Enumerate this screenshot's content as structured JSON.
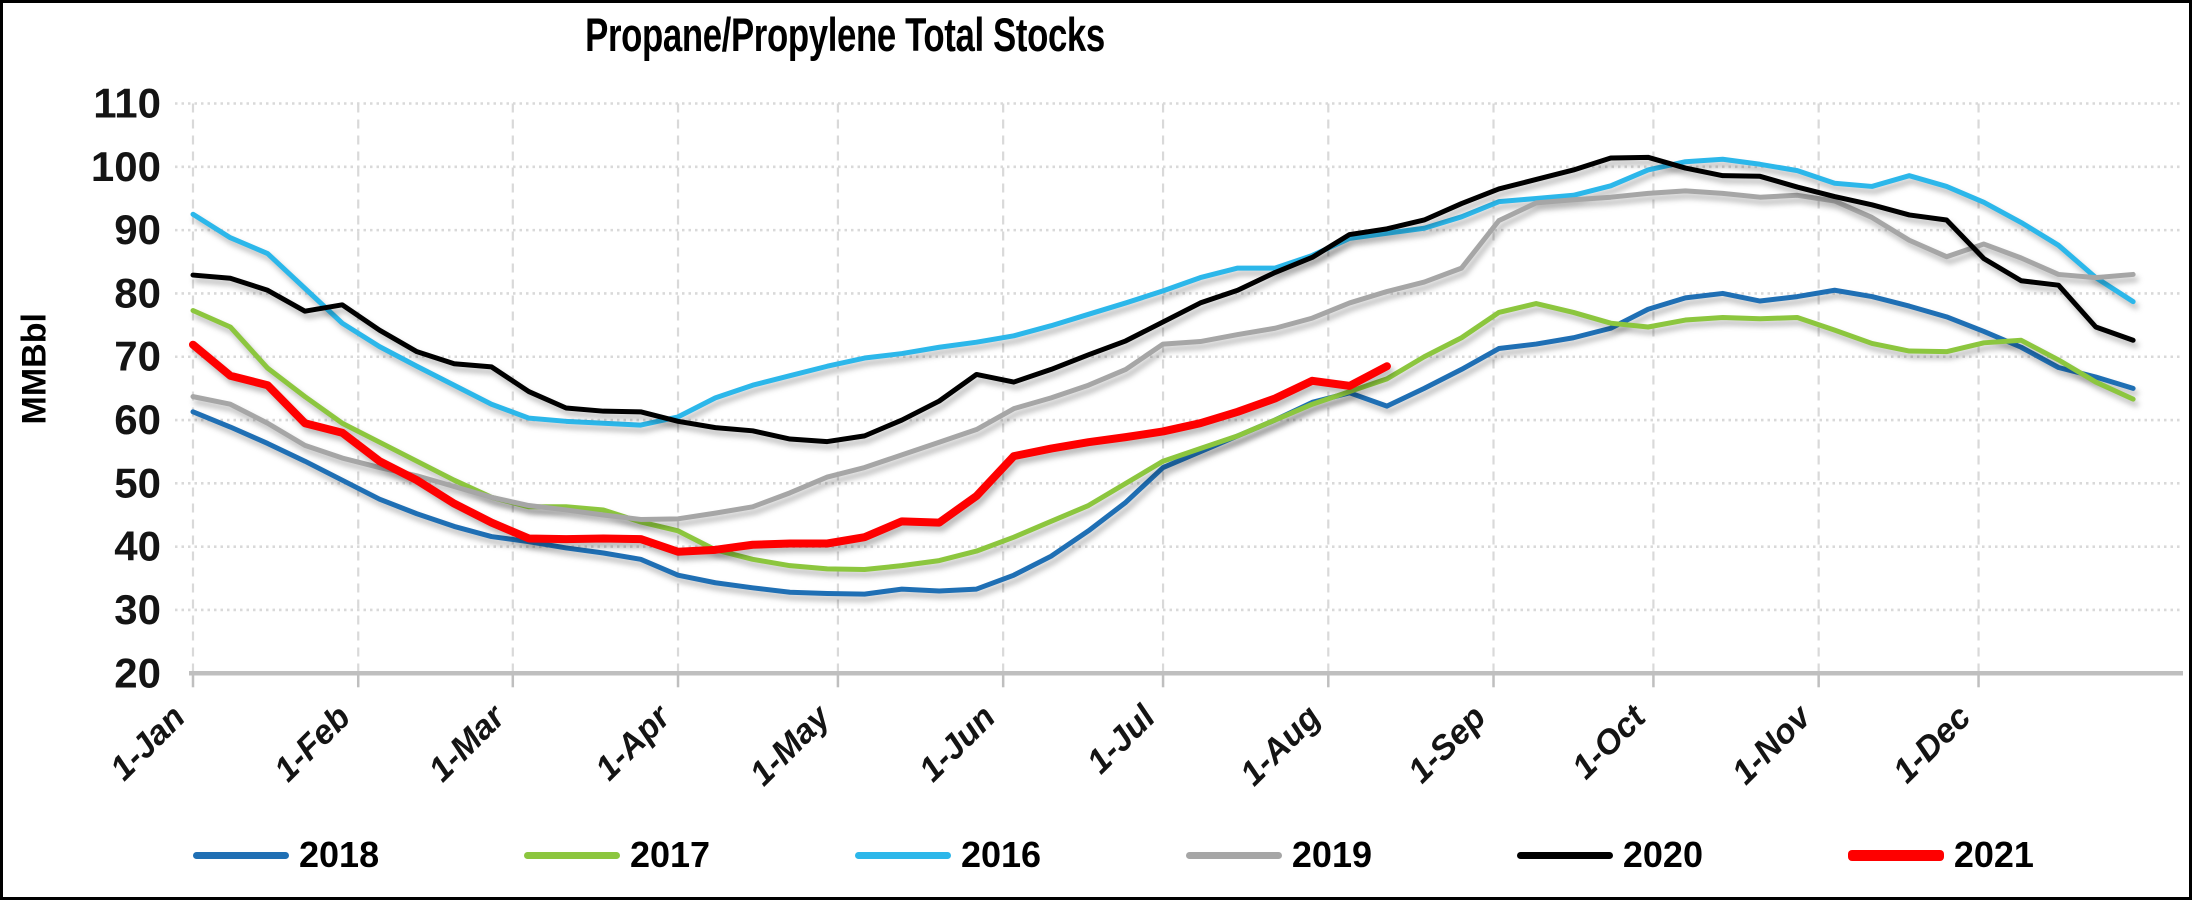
{
  "chart_data": {
    "type": "line",
    "title": "Propane/Propylene Total Stocks",
    "xlabel": "",
    "ylabel": "MMBbl",
    "ylim": [
      20,
      110
    ],
    "ytick_step": 10,
    "grid": true,
    "legend_position": "bottom",
    "x_unit": "weekly points, one per week starting 1-Jan",
    "x_tick_labels": [
      "1-Jan",
      "1-Feb",
      "1-Mar",
      "1-Apr",
      "1-May",
      "1-Jun",
      "1-Jul",
      "1-Aug",
      "1-Sep",
      "1-Oct",
      "1-Nov",
      "1-Dec"
    ],
    "series": [
      {
        "name": "2018",
        "color": "#1f6fb4",
        "width": 5,
        "values": [
          61.3,
          58.9,
          56.3,
          53.5,
          50.5,
          47.5,
          45.2,
          43.2,
          41.6,
          40.8,
          39.8,
          39.0,
          38.0,
          35.5,
          34.3,
          33.5,
          32.8,
          32.6,
          32.5,
          33.3,
          33.0,
          33.3,
          35.5,
          38.5,
          42.5,
          47.0,
          52.5,
          55.0,
          57.5,
          60.0,
          62.8,
          64.3,
          62.2,
          65.0,
          68.0,
          71.3,
          72.0,
          73.0,
          74.5,
          77.5,
          79.3,
          80.0,
          78.8,
          79.5,
          80.5,
          79.5,
          78.0,
          76.3,
          74.0,
          71.5,
          68.3,
          66.8,
          65.0
        ]
      },
      {
        "name": "2017",
        "color": "#8cc63e",
        "width": 5,
        "values": [
          77.3,
          74.7,
          68.2,
          63.7,
          59.5,
          56.5,
          53.5,
          50.5,
          47.8,
          46.3,
          46.3,
          45.8,
          43.9,
          42.5,
          39.5,
          38.0,
          37.0,
          36.5,
          36.4,
          37.0,
          37.8,
          39.3,
          41.5,
          44.0,
          46.5,
          50.0,
          53.5,
          55.5,
          57.5,
          60.0,
          62.5,
          64.5,
          66.5,
          70.0,
          73.0,
          77.0,
          78.4,
          77.0,
          75.3,
          74.7,
          75.8,
          76.2,
          76.0,
          76.2,
          74.2,
          72.1,
          70.9,
          70.8,
          72.2,
          72.6,
          69.5,
          66.0,
          63.3
        ]
      },
      {
        "name": "2016",
        "color": "#2cb7ea",
        "width": 5,
        "values": [
          92.5,
          88.8,
          86.3,
          80.8,
          75.3,
          71.6,
          68.5,
          65.5,
          62.5,
          60.3,
          59.8,
          59.5,
          59.2,
          60.5,
          63.5,
          65.5,
          67.0,
          68.5,
          69.8,
          70.5,
          71.5,
          72.3,
          73.3,
          74.9,
          76.7,
          78.5,
          80.4,
          82.5,
          84.0,
          84.0,
          86.0,
          88.7,
          89.5,
          90.3,
          92.1,
          94.5,
          95.0,
          95.5,
          97.0,
          99.5,
          100.8,
          101.2,
          100.4,
          99.4,
          97.4,
          96.9,
          98.6,
          96.9,
          94.4,
          91.2,
          87.6,
          82.5,
          78.7
        ]
      },
      {
        "name": "2019",
        "color": "#a6a6a6",
        "width": 5,
        "values": [
          63.7,
          62.5,
          59.5,
          56.0,
          54.0,
          52.5,
          51.2,
          49.5,
          47.8,
          46.5,
          45.8,
          45.0,
          44.3,
          44.4,
          45.3,
          46.3,
          48.5,
          51.0,
          52.5,
          54.5,
          56.5,
          58.5,
          61.8,
          63.5,
          65.5,
          68.0,
          72.0,
          72.4,
          73.5,
          74.5,
          76.1,
          78.5,
          80.3,
          81.8,
          84.0,
          91.5,
          94.3,
          94.8,
          95.2,
          95.8,
          96.2,
          95.8,
          95.2,
          95.5,
          94.6,
          92.0,
          88.4,
          85.8,
          87.8,
          85.6,
          83.0,
          82.5,
          83.0
        ]
      },
      {
        "name": "2020",
        "color": "#000000",
        "width": 5,
        "values": [
          82.9,
          82.4,
          80.5,
          77.2,
          78.2,
          74.2,
          70.8,
          68.9,
          68.4,
          64.5,
          61.9,
          61.4,
          61.3,
          59.8,
          58.8,
          58.3,
          57.0,
          56.6,
          57.5,
          60.0,
          63.0,
          67.2,
          66.0,
          68.0,
          70.3,
          72.5,
          75.5,
          78.5,
          80.5,
          83.3,
          85.7,
          89.3,
          90.2,
          91.6,
          94.2,
          96.5,
          98.0,
          99.5,
          101.4,
          101.5,
          99.8,
          98.6,
          98.5,
          96.8,
          95.3,
          94.0,
          92.4,
          91.6,
          85.5,
          82.0,
          81.3,
          74.7,
          72.6
        ]
      },
      {
        "name": "2021",
        "color": "#fe0000",
        "width": 8,
        "values": [
          71.9,
          67.0,
          65.5,
          59.5,
          58.0,
          53.5,
          50.5,
          46.8,
          43.8,
          41.3,
          41.2,
          41.3,
          41.2,
          39.2,
          39.5,
          40.3,
          40.5,
          40.5,
          41.5,
          44.0,
          43.8,
          48.0,
          54.3,
          55.5,
          56.5,
          57.3,
          58.2,
          59.5,
          61.3,
          63.4,
          66.2,
          65.4,
          68.5
        ]
      }
    ]
  }
}
